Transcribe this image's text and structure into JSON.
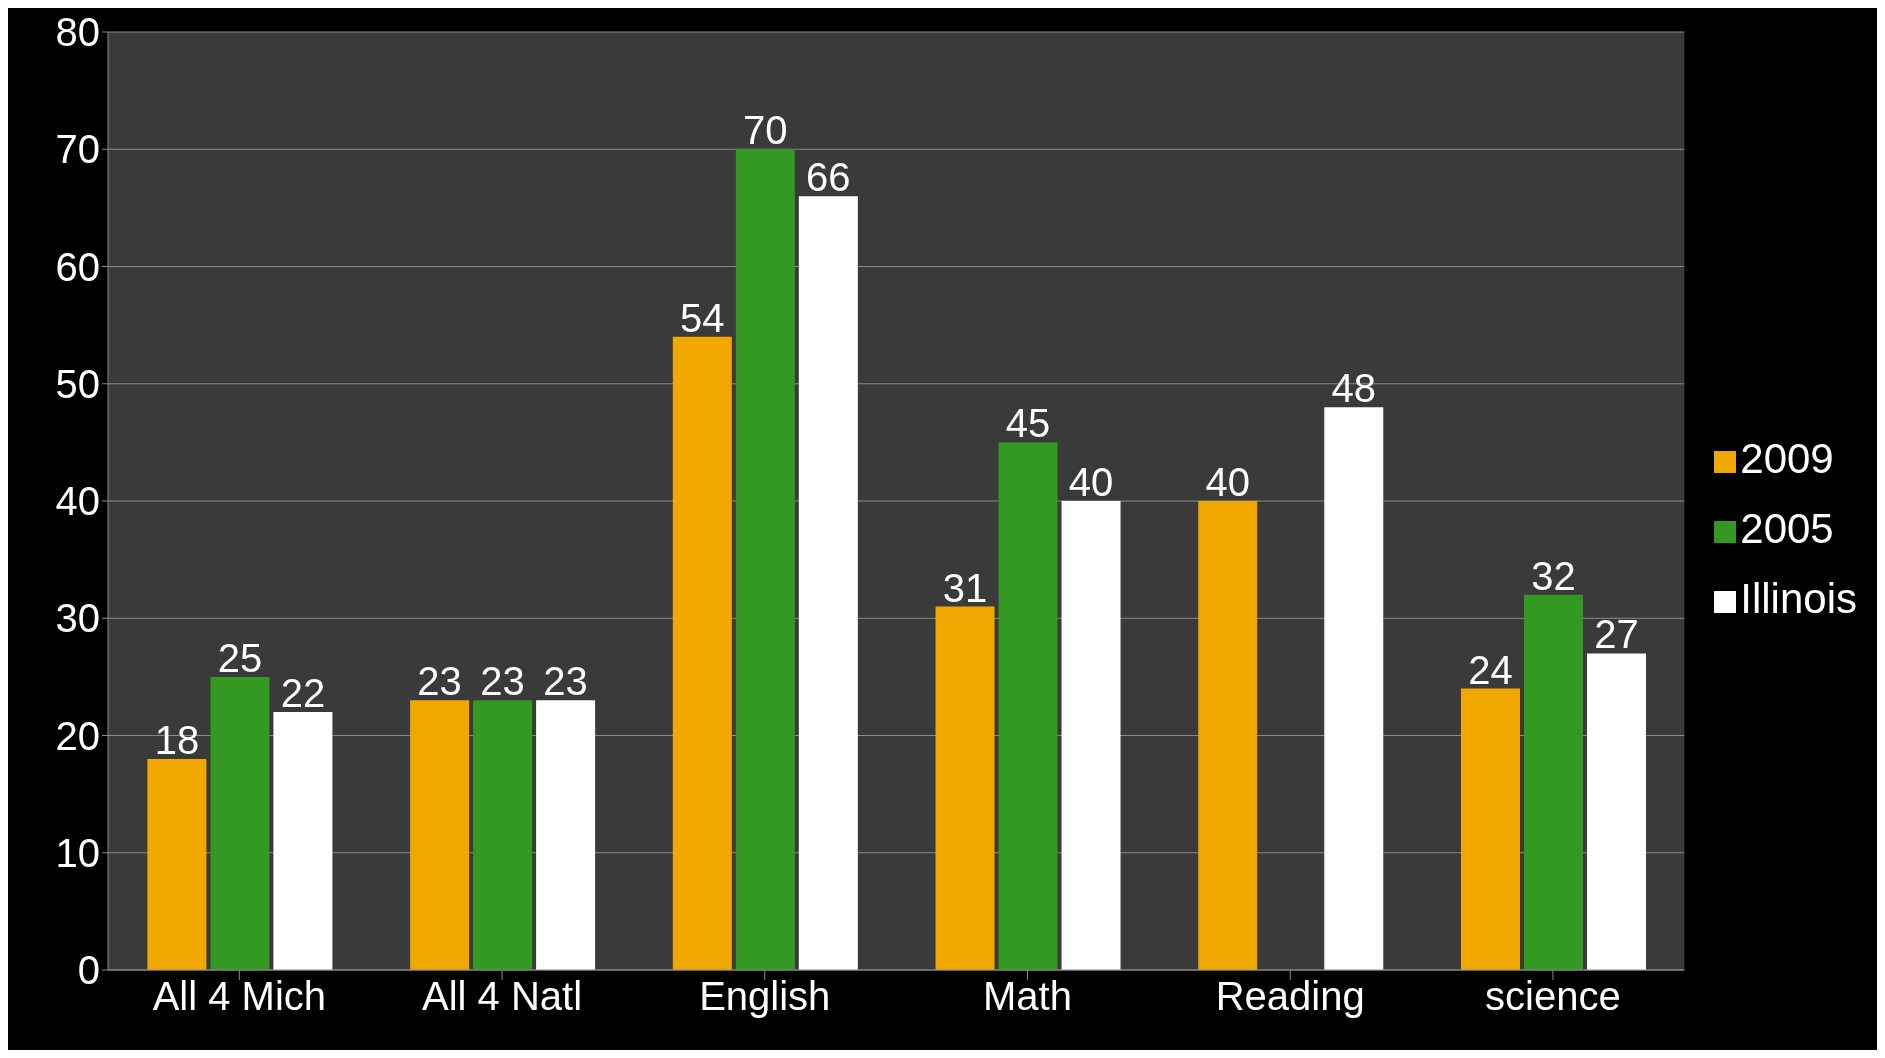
{
  "chart_data": {
    "type": "bar",
    "categories": [
      "All 4 Mich",
      "All 4 Natl",
      "English",
      "Math",
      "Reading",
      "science"
    ],
    "series": [
      {
        "name": "2009",
        "color": "#f0a800",
        "values": [
          18,
          23,
          54,
          31,
          40,
          24
        ]
      },
      {
        "name": "2005",
        "color": "#339922",
        "values": [
          25,
          23,
          70,
          45,
          null,
          32
        ]
      },
      {
        "name": "Illinois",
        "color": "#ffffff",
        "values": [
          22,
          23,
          66,
          40,
          48,
          27
        ]
      }
    ],
    "ylim": [
      0,
      80
    ],
    "yticks": [
      0,
      10,
      20,
      30,
      40,
      50,
      60,
      70,
      80
    ],
    "grid": "y",
    "legend": "right",
    "data_labels": true
  }
}
